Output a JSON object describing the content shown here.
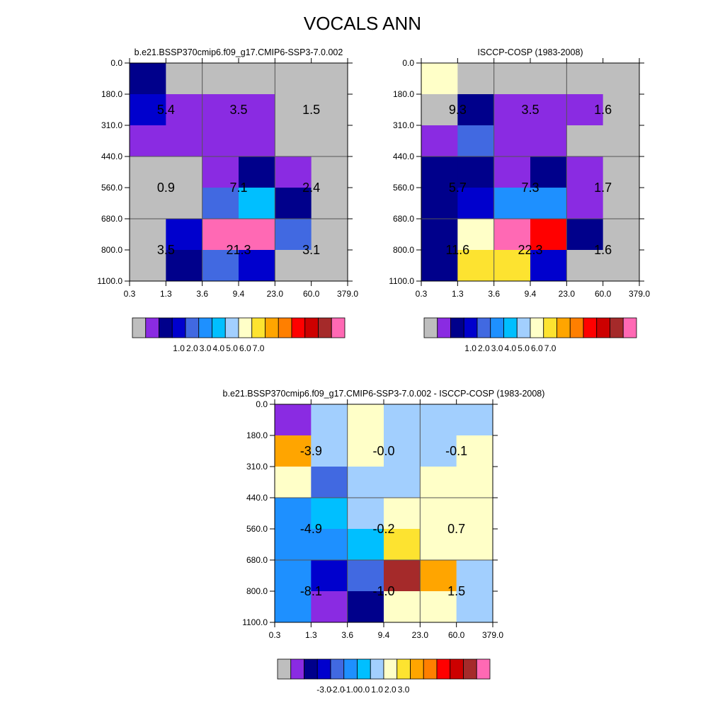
{
  "figure": {
    "title": "VOCALS ANN"
  },
  "colors": {
    "model_obs_palette": [
      "#bebebe",
      "#8a2be2",
      "#00008b",
      "#0000cd",
      "#4169e1",
      "#1e90ff",
      "#00bfff",
      "#a2cffe",
      "#ffffc8",
      "#fde330",
      "#ffa500",
      "#ff7f00",
      "#ff0000",
      "#cd0000",
      "#a52a2a",
      "#ff69b4"
    ],
    "diff_palette": [
      "#bebebe",
      "#8a2be2",
      "#00008b",
      "#0000cd",
      "#4169e1",
      "#1e90ff",
      "#00bfff",
      "#a2cffe",
      "#ffffc8",
      "#fde330",
      "#ffa500",
      "#ff7f00",
      "#ff0000",
      "#cd0000",
      "#a52a2a",
      "#ff69b4"
    ]
  },
  "chart_data": [
    {
      "type": "heatmap",
      "title": "b.e21.BSSP370cmip6.f09_g17.CMIP6-SSP3-7.0.002",
      "x_ticks": [
        "0.3",
        "1.3",
        "3.6",
        "9.4",
        "23.0",
        "60.0",
        "379.0"
      ],
      "y_ticks": [
        "0.0",
        "180.0",
        "310.0",
        "440.0",
        "560.0",
        "680.0",
        "800.0",
        "1100.0"
      ],
      "cell_color_index": [
        [
          2,
          0,
          0,
          0,
          0,
          0
        ],
        [
          3,
          1,
          1,
          1,
          0,
          0
        ],
        [
          1,
          1,
          1,
          1,
          0,
          0
        ],
        [
          0,
          0,
          1,
          2,
          1,
          0
        ],
        [
          0,
          0,
          4,
          6,
          2,
          0
        ],
        [
          0,
          3,
          15,
          15,
          4,
          0
        ],
        [
          0,
          2,
          4,
          3,
          0,
          0
        ]
      ],
      "group_labels": [
        {
          "col": 0,
          "row": 0,
          "text": "5.4"
        },
        {
          "col": 1,
          "row": 0,
          "text": "3.5"
        },
        {
          "col": 2,
          "row": 0,
          "text": "1.5"
        },
        {
          "col": 0,
          "row": 1,
          "text": "0.9"
        },
        {
          "col": 1,
          "row": 1,
          "text": "7.1"
        },
        {
          "col": 2,
          "row": 1,
          "text": "2.4"
        },
        {
          "col": 0,
          "row": 2,
          "text": "3.5"
        },
        {
          "col": 1,
          "row": 2,
          "text": "21.3"
        },
        {
          "col": 2,
          "row": 2,
          "text": "3.1"
        }
      ],
      "colorbar": {
        "palette": "model_obs_palette",
        "labels": [
          "1.0",
          "2.0",
          "3.0",
          "4.0",
          "5.0",
          "6.0",
          "7.0"
        ]
      }
    },
    {
      "type": "heatmap",
      "title": "ISCCP-COSP (1983-2008)",
      "x_ticks": [
        "0.3",
        "1.3",
        "3.6",
        "9.4",
        "23.0",
        "60.0",
        "379.0"
      ],
      "y_ticks": [
        "0.0",
        "180.0",
        "310.0",
        "440.0",
        "560.0",
        "680.0",
        "800.0",
        "1100.0"
      ],
      "cell_color_index": [
        [
          8,
          0,
          0,
          0,
          0,
          0
        ],
        [
          0,
          2,
          1,
          1,
          1,
          0
        ],
        [
          1,
          4,
          1,
          1,
          0,
          0
        ],
        [
          2,
          2,
          1,
          2,
          1,
          0
        ],
        [
          2,
          3,
          5,
          5,
          1,
          0
        ],
        [
          2,
          8,
          15,
          12,
          2,
          0
        ],
        [
          2,
          9,
          9,
          3,
          0,
          0
        ]
      ],
      "group_labels": [
        {
          "col": 0,
          "row": 0,
          "text": "9.3"
        },
        {
          "col": 1,
          "row": 0,
          "text": "3.5"
        },
        {
          "col": 2,
          "row": 0,
          "text": "1.6"
        },
        {
          "col": 0,
          "row": 1,
          "text": "5.7"
        },
        {
          "col": 1,
          "row": 1,
          "text": "7.3"
        },
        {
          "col": 2,
          "row": 1,
          "text": "1.7"
        },
        {
          "col": 0,
          "row": 2,
          "text": "11.6"
        },
        {
          "col": 1,
          "row": 2,
          "text": "22.3"
        },
        {
          "col": 2,
          "row": 2,
          "text": "1.6"
        }
      ],
      "colorbar": {
        "palette": "model_obs_palette",
        "labels": [
          "1.0",
          "2.0",
          "3.0",
          "4.0",
          "5.0",
          "6.0",
          "7.0"
        ]
      }
    },
    {
      "type": "heatmap",
      "title": "b.e21.BSSP370cmip6.f09_g17.CMIP6-SSP3-7.0.002 - ISCCP-COSP (1983-2008)",
      "x_ticks": [
        "0.3",
        "1.3",
        "3.6",
        "9.4",
        "23.0",
        "60.0",
        "379.0"
      ],
      "y_ticks": [
        "0.0",
        "180.0",
        "310.0",
        "440.0",
        "560.0",
        "680.0",
        "800.0",
        "1100.0"
      ],
      "cell_color_index": [
        [
          1,
          7,
          8,
          7,
          7,
          7
        ],
        [
          10,
          7,
          8,
          7,
          7,
          8
        ],
        [
          8,
          4,
          7,
          7,
          8,
          8
        ],
        [
          5,
          6,
          7,
          8,
          8,
          8
        ],
        [
          5,
          5,
          6,
          9,
          8,
          8
        ],
        [
          5,
          3,
          4,
          14,
          10,
          7
        ],
        [
          5,
          1,
          2,
          8,
          8,
          7
        ]
      ],
      "group_labels": [
        {
          "col": 0,
          "row": 0,
          "text": "-3.9"
        },
        {
          "col": 1,
          "row": 0,
          "text": "-0.0"
        },
        {
          "col": 2,
          "row": 0,
          "text": "-0.1"
        },
        {
          "col": 0,
          "row": 1,
          "text": "-4.9"
        },
        {
          "col": 1,
          "row": 1,
          "text": "-0.2"
        },
        {
          "col": 2,
          "row": 1,
          "text": "0.7"
        },
        {
          "col": 0,
          "row": 2,
          "text": "-8.1"
        },
        {
          "col": 1,
          "row": 2,
          "text": "-1.0"
        },
        {
          "col": 2,
          "row": 2,
          "text": "1.5"
        }
      ],
      "colorbar": {
        "palette": "diff_palette",
        "labels": [
          "-3.0",
          "-2.0",
          "-1.0",
          "0.0",
          "1.0",
          "2.0",
          "3.0"
        ]
      }
    }
  ]
}
